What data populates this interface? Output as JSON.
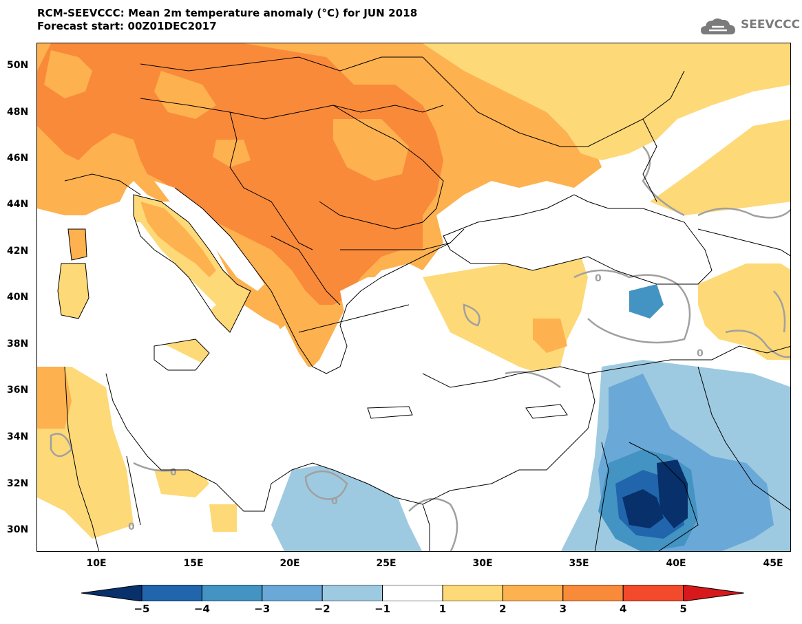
{
  "header": {
    "title_line1": "RCM-SEEVCCC: Mean 2m temperature anomaly (°C) for JUN 2018",
    "title_line2": "Forecast start: 00Z01DEC2017"
  },
  "logo": {
    "text": "SEEVCCC",
    "icon": "cloud-icon"
  },
  "map": {
    "projection": "lat-lon",
    "lon_range": [
      7,
      46
    ],
    "lat_range": [
      29,
      51
    ],
    "lat_labels": [
      "50N",
      "48N",
      "46N",
      "44N",
      "42N",
      "40N",
      "38N",
      "36N",
      "34N",
      "32N",
      "30N"
    ],
    "lon_labels": [
      "10E",
      "15E",
      "20E",
      "25E",
      "30E",
      "35E",
      "40E",
      "45E"
    ],
    "contour_labels": [
      "0",
      "0",
      "0",
      "0",
      "0"
    ]
  },
  "colorbar": {
    "labels": [
      "−5",
      "−4",
      "−3",
      "−2",
      "−1",
      "1",
      "2",
      "3",
      "4",
      "5"
    ],
    "colors": [
      "#08306b",
      "#2166ac",
      "#4393c3",
      "#6aa8d8",
      "#9ecae1",
      "#ffffff",
      "#fdd978",
      "#fdb14f",
      "#f98a3a",
      "#f24a2a",
      "#d7191c"
    ]
  }
}
